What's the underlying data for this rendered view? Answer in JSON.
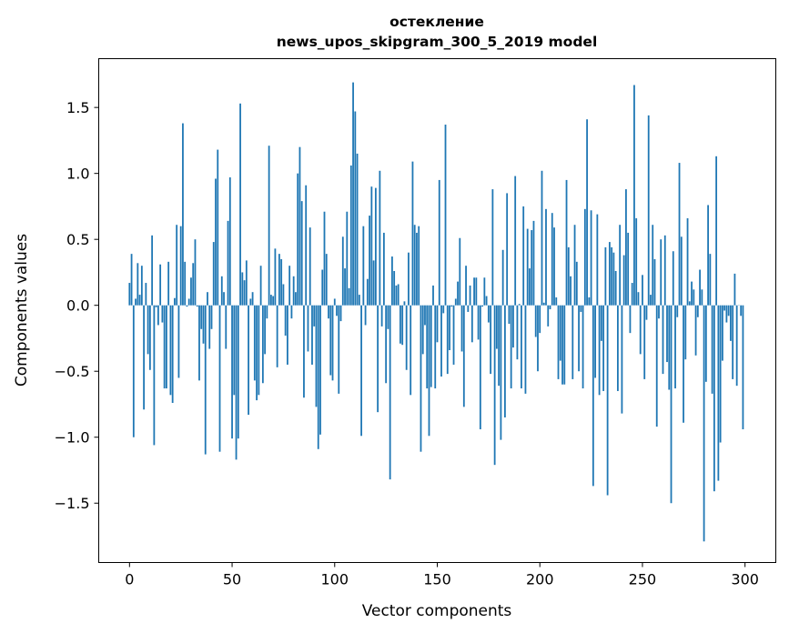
{
  "chart_data": {
    "type": "bar",
    "title": [
      "остекление",
      "news_upos_skipgram_300_5_2019 model"
    ],
    "xlabel": "Vector components",
    "ylabel": "Components values",
    "xlim": [
      -15,
      315
    ],
    "ylim": [
      -1.95,
      1.87
    ],
    "xticks": [
      0,
      50,
      100,
      150,
      200,
      250,
      300
    ],
    "xtick_labels": [
      "0",
      "50",
      "100",
      "150",
      "200",
      "250",
      "300"
    ],
    "yticks": [
      -1.5,
      -1.0,
      -0.5,
      0.0,
      0.5,
      1.0,
      1.5
    ],
    "ytick_labels": [
      "−1.5",
      "−1.0",
      "−0.5",
      "0.0",
      "0.5",
      "1.0",
      "1.5"
    ],
    "grid": false,
    "color": "#1f77b4",
    "values": [
      0.17,
      0.39,
      -1.0,
      0.05,
      0.32,
      0.08,
      0.3,
      -0.79,
      0.17,
      -0.37,
      -0.49,
      0.53,
      -1.06,
      -0.015,
      -0.15,
      0.31,
      -0.13,
      -0.63,
      -0.63,
      0.33,
      -0.68,
      -0.74,
      0.055,
      0.61,
      -0.55,
      0.6,
      1.38,
      0.33,
      -0.01,
      0.05,
      0.21,
      0.32,
      0.5,
      -0.01,
      -0.57,
      -0.18,
      -0.29,
      -1.13,
      0.1,
      -0.33,
      -0.18,
      0.48,
      0.96,
      1.18,
      -1.11,
      0.22,
      0.1,
      -0.33,
      0.64,
      0.97,
      -1.01,
      -0.68,
      -1.17,
      -1.01,
      1.53,
      0.25,
      0.19,
      0.34,
      -0.83,
      0.05,
      0.1,
      -0.57,
      -0.72,
      -0.68,
      0.3,
      -0.59,
      -0.37,
      -0.1,
      1.21,
      0.08,
      0.07,
      0.43,
      -0.47,
      0.39,
      0.35,
      0.16,
      -0.23,
      -0.45,
      0.3,
      -0.1,
      0.22,
      0.1,
      1.0,
      1.2,
      0.79,
      -0.7,
      0.91,
      -0.35,
      0.59,
      -0.45,
      -0.16,
      -0.77,
      -1.09,
      -0.98,
      0.27,
      0.71,
      0.39,
      -0.1,
      -0.53,
      -0.57,
      0.05,
      -0.08,
      -0.67,
      -0.12,
      0.52,
      0.28,
      0.71,
      0.13,
      1.06,
      1.69,
      1.47,
      1.15,
      0.08,
      -0.99,
      0.6,
      -0.15,
      0.2,
      0.68,
      0.9,
      0.34,
      0.89,
      -0.81,
      1.02,
      -0.16,
      0.55,
      -0.59,
      -0.18,
      -1.32,
      0.37,
      0.26,
      0.15,
      0.16,
      -0.29,
      -0.3,
      0.03,
      -0.49,
      0.4,
      -0.68,
      1.09,
      0.61,
      0.55,
      0.6,
      -1.11,
      -0.37,
      -0.15,
      -0.63,
      -0.99,
      -0.62,
      0.15,
      -0.63,
      -0.28,
      0.95,
      -0.54,
      -0.06,
      1.37,
      -0.52,
      -0.34,
      -0.01,
      -0.45,
      0.05,
      0.18,
      0.51,
      -0.35,
      -0.77,
      0.3,
      -0.05,
      0.15,
      -0.28,
      0.21,
      0.21,
      -0.26,
      -0.94,
      -0.01,
      0.21,
      0.07,
      -0.13,
      -0.52,
      0.88,
      -1.21,
      -0.33,
      -0.61,
      -1.02,
      0.42,
      -0.85,
      0.85,
      -0.14,
      -0.63,
      -0.32,
      0.98,
      -0.41,
      0.01,
      -0.63,
      0.75,
      -0.67,
      0.58,
      0.28,
      0.57,
      0.64,
      -0.24,
      -0.5,
      -0.21,
      1.02,
      0.02,
      0.73,
      -0.16,
      -0.03,
      0.7,
      0.59,
      0.06,
      -0.56,
      -0.42,
      -0.6,
      -0.6,
      0.95,
      0.44,
      0.22,
      -0.56,
      0.61,
      0.33,
      -0.5,
      -0.05,
      -0.63,
      0.73,
      1.41,
      0.06,
      0.72,
      -1.37,
      -0.55,
      0.69,
      -0.68,
      -0.27,
      -0.65,
      0.44,
      -1.44,
      0.48,
      0.44,
      0.4,
      0.26,
      -0.65,
      0.61,
      -0.82,
      0.38,
      0.88,
      0.55,
      -0.21,
      0.17,
      1.67,
      0.66,
      0.1,
      -0.37,
      0.23,
      -0.56,
      -0.11,
      1.44,
      0.08,
      0.61,
      0.35,
      -0.92,
      -0.1,
      0.5,
      -0.52,
      0.53,
      -0.43,
      -0.64,
      -1.5,
      0.41,
      -0.63,
      -0.09,
      1.08,
      0.52,
      -0.89,
      -0.41,
      0.66,
      0.03,
      0.18,
      0.12,
      -0.38,
      -0.09,
      0.27,
      0.12,
      -1.79,
      -0.58,
      0.76,
      0.39,
      -0.67,
      -1.41,
      1.13,
      -1.33,
      -1.04,
      -0.42,
      -0.04,
      -0.13,
      -0.08,
      -0.27,
      -0.56,
      0.24,
      -0.61,
      0.0,
      -0.08,
      -0.94
    ]
  }
}
